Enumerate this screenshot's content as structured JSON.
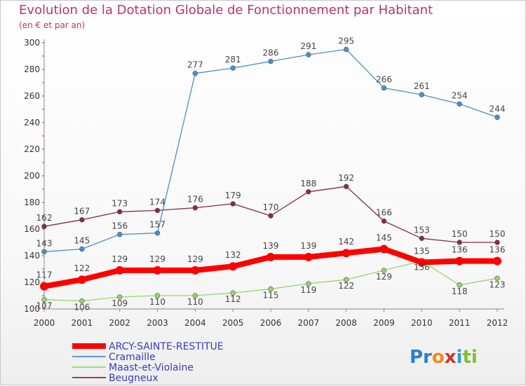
{
  "title": "Evolution de la Dotation Globale de Fonctionnement par Habitant",
  "subtitle": "(en € et par an)",
  "brand": {
    "parts": [
      "Pr",
      "o",
      "x",
      "i",
      "ti"
    ]
  },
  "chart_data": {
    "type": "line",
    "x": [
      "2000",
      "2001",
      "2002",
      "2003",
      "2004",
      "2005",
      "2006",
      "2007",
      "2008",
      "2009",
      "2010",
      "2011",
      "2012"
    ],
    "ylim": [
      100,
      300
    ],
    "yticks": [
      100,
      120,
      140,
      160,
      180,
      200,
      220,
      240,
      260,
      280,
      300
    ],
    "grid": false,
    "legend": "bottom-left",
    "series": [
      {
        "name": "Beugneux",
        "color": "#8b2a3a",
        "values": [
          162,
          167,
          173,
          174,
          176,
          179,
          170,
          188,
          192,
          166,
          153,
          150,
          150
        ]
      },
      {
        "name": "Maast-et-Violaine",
        "color": "#9ad36a",
        "values": [
          107,
          106,
          109,
          110,
          110,
          112,
          115,
          119,
          122,
          129,
          136,
          118,
          123
        ]
      },
      {
        "name": "Cramaille",
        "color": "#4a8ed0",
        "values": [
          143,
          145,
          156,
          157,
          277,
          281,
          286,
          291,
          295,
          266,
          261,
          254,
          244
        ]
      },
      {
        "name": "ARCY-SAINTE-RESTITUE",
        "color": "#ff0000",
        "values": [
          117,
          122,
          129,
          129,
          129,
          132,
          139,
          139,
          142,
          145,
          135,
          136,
          136
        ]
      }
    ]
  }
}
